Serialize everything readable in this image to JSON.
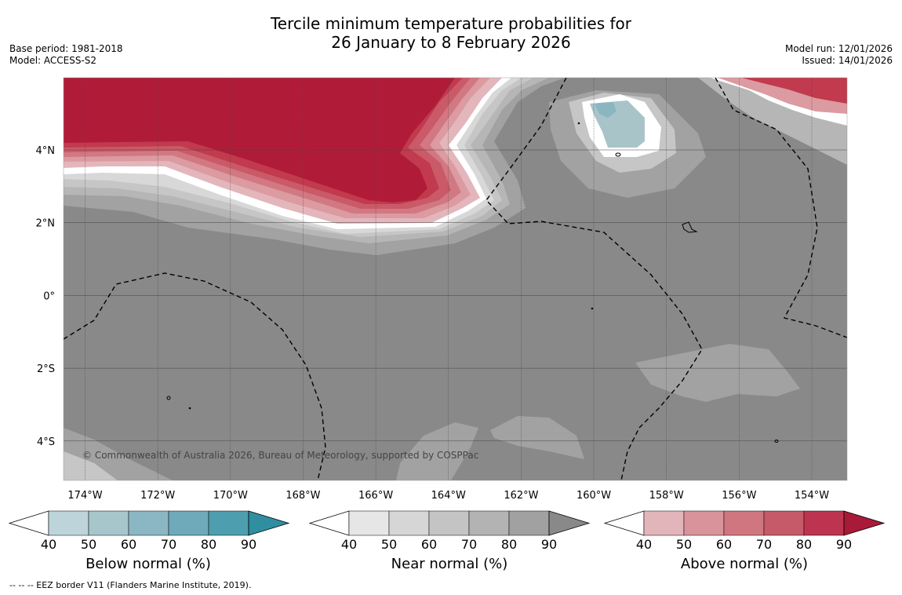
{
  "title": {
    "line1": "Tercile minimum temperature probabilities for",
    "line2": "26 January to 8 February 2026"
  },
  "meta_left": {
    "base_period": "Base period: 1981-2018",
    "model": "Model: ACCESS-S2"
  },
  "meta_right": {
    "model_run": "Model run: 12/01/2026",
    "issued": "Issued: 14/01/2026"
  },
  "map": {
    "lon_labels": [
      "174°W",
      "172°W",
      "170°W",
      "168°W",
      "166°W",
      "164°W",
      "162°W",
      "160°W",
      "158°W",
      "156°W",
      "154°W"
    ],
    "lat_labels": [
      "4°N",
      "2°N",
      "0°",
      "2°S",
      "4°S"
    ],
    "copyright": "© Commonwealth of Australia 2026, Bureau of Meteorology, supported by COSPPac",
    "colors": {
      "background_near_90": "#898989",
      "near_80": "#a2a2a2",
      "near_70": "#b6b6b6",
      "near_60": "#c6c6c6",
      "near_50": "#d8d8d8",
      "above_90": "#b01c38",
      "above_80": "#c13a4e",
      "above_70": "#ca5a67",
      "above_60": "#d27882",
      "above_50": "#dc9aa1",
      "above_40": "#e3b6bc",
      "below_50": "#a8c4c9",
      "below_60": "#8ab6c2"
    }
  },
  "colorbars": [
    {
      "label": "Below normal (%)",
      "ticks": [
        "40",
        "50",
        "60",
        "70",
        "80",
        "90"
      ],
      "colors": [
        "#bcd4da",
        "#a6c6cc",
        "#8ab7c3",
        "#6eaab9",
        "#4d9eae",
        "#2f8ea0"
      ]
    },
    {
      "label": "Near normal (%)",
      "ticks": [
        "40",
        "50",
        "60",
        "70",
        "80",
        "90"
      ],
      "colors": [
        "#e6e6e6",
        "#d6d6d6",
        "#c4c4c4",
        "#b3b3b3",
        "#a1a1a1",
        "#898989"
      ]
    },
    {
      "label": "Above normal (%)",
      "ticks": [
        "40",
        "50",
        "60",
        "70",
        "80",
        "90"
      ],
      "colors": [
        "#e2b5bb",
        "#d9939b",
        "#cf7680",
        "#c65a68",
        "#bd3450",
        "#a81a38"
      ]
    }
  ],
  "footer": "--  --  -- EEZ border V11 (Flanders Marine Institute, 2019)."
}
